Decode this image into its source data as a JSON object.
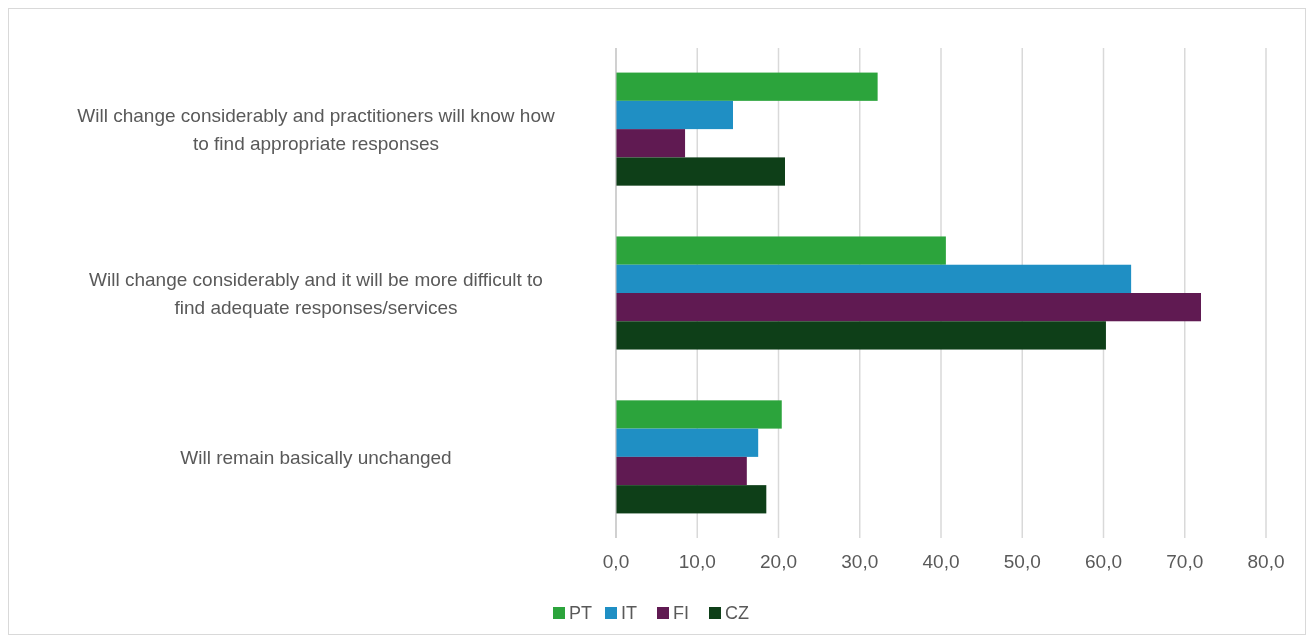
{
  "chart_data": {
    "type": "bar",
    "orientation": "horizontal",
    "categories": [
      "Will change considerably and practitioners will know how to find appropriate responses",
      "Will change considerably and it will be more difficult to find adequate responses/services",
      "Will remain basically unchanged"
    ],
    "series": [
      {
        "name": "PT",
        "color": "#2ca43c",
        "values": [
          32.2,
          40.6,
          20.4
        ]
      },
      {
        "name": "IT",
        "color": "#1f8fc4",
        "values": [
          14.4,
          63.4,
          17.5
        ]
      },
      {
        "name": "FI",
        "color": "#601a52",
        "values": [
          8.5,
          72.0,
          16.1
        ]
      },
      {
        "name": "CZ",
        "color": "#0e3f18",
        "values": [
          20.8,
          60.3,
          18.5
        ]
      }
    ],
    "xlim": [
      0,
      80
    ],
    "xticks": [
      {
        "value": 0,
        "label": "0,0"
      },
      {
        "value": 10,
        "label": "10,0"
      },
      {
        "value": 20,
        "label": "20,0"
      },
      {
        "value": 30,
        "label": "30,0"
      },
      {
        "value": 40,
        "label": "40,0"
      },
      {
        "value": 50,
        "label": "50,0"
      },
      {
        "value": 60,
        "label": "60,0"
      },
      {
        "value": 70,
        "label": "70,0"
      },
      {
        "value": 80,
        "label": "80,0"
      }
    ],
    "grid": "x",
    "legend": "bottom"
  }
}
